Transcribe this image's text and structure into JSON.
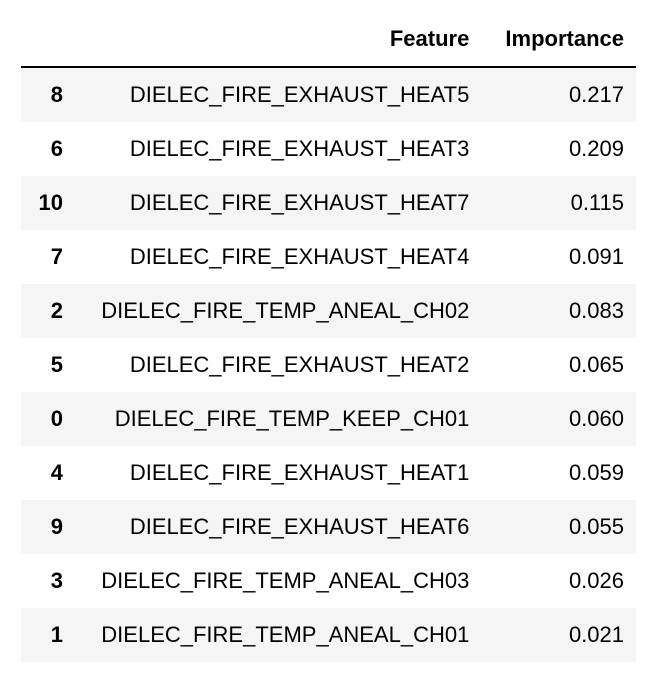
{
  "table": {
    "columns": [
      "",
      "Feature",
      "Importance"
    ],
    "rows": [
      {
        "index": "8",
        "feature": "DIELEC_FIRE_EXHAUST_HEAT5",
        "importance": "0.217"
      },
      {
        "index": "6",
        "feature": "DIELEC_FIRE_EXHAUST_HEAT3",
        "importance": "0.209"
      },
      {
        "index": "10",
        "feature": "DIELEC_FIRE_EXHAUST_HEAT7",
        "importance": "0.115"
      },
      {
        "index": "7",
        "feature": "DIELEC_FIRE_EXHAUST_HEAT4",
        "importance": "0.091"
      },
      {
        "index": "2",
        "feature": "DIELEC_FIRE_TEMP_ANEAL_CH02",
        "importance": "0.083"
      },
      {
        "index": "5",
        "feature": "DIELEC_FIRE_EXHAUST_HEAT2",
        "importance": "0.065"
      },
      {
        "index": "0",
        "feature": "DIELEC_FIRE_TEMP_KEEP_CH01",
        "importance": "0.060"
      },
      {
        "index": "4",
        "feature": "DIELEC_FIRE_EXHAUST_HEAT1",
        "importance": "0.059"
      },
      {
        "index": "9",
        "feature": "DIELEC_FIRE_EXHAUST_HEAT6",
        "importance": "0.055"
      },
      {
        "index": "3",
        "feature": "DIELEC_FIRE_TEMP_ANEAL_CH03",
        "importance": "0.026"
      },
      {
        "index": "1",
        "feature": "DIELEC_FIRE_TEMP_ANEAL_CH01",
        "importance": "0.021"
      }
    ]
  },
  "chart_data": {
    "type": "table",
    "columns": [
      "Feature",
      "Importance"
    ],
    "index": [
      "8",
      "6",
      "10",
      "7",
      "2",
      "5",
      "0",
      "4",
      "9",
      "3",
      "1"
    ],
    "values": [
      [
        "DIELEC_FIRE_EXHAUST_HEAT5",
        0.217
      ],
      [
        "DIELEC_FIRE_EXHAUST_HEAT3",
        0.209
      ],
      [
        "DIELEC_FIRE_EXHAUST_HEAT7",
        0.115
      ],
      [
        "DIELEC_FIRE_EXHAUST_HEAT4",
        0.091
      ],
      [
        "DIELEC_FIRE_TEMP_ANEAL_CH02",
        0.083
      ],
      [
        "DIELEC_FIRE_EXHAUST_HEAT2",
        0.065
      ],
      [
        "DIELEC_FIRE_TEMP_KEEP_CH01",
        0.06
      ],
      [
        "DIELEC_FIRE_EXHAUST_HEAT1",
        0.059
      ],
      [
        "DIELEC_FIRE_EXHAUST_HEAT6",
        0.055
      ],
      [
        "DIELEC_FIRE_TEMP_ANEAL_CH03",
        0.026
      ],
      [
        "DIELEC_FIRE_TEMP_ANEAL_CH01",
        0.021
      ]
    ]
  }
}
